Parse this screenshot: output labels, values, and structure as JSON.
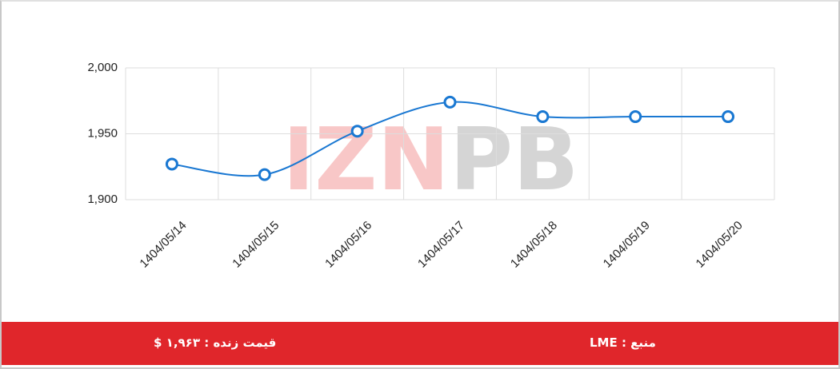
{
  "chart_data": {
    "type": "line",
    "categories": [
      "1404/05/14",
      "1404/05/15",
      "1404/05/16",
      "1404/05/17",
      "1404/05/18",
      "1404/05/19",
      "1404/05/20"
    ],
    "series": [
      {
        "color": "#1a78d2",
        "values": [
          1927,
          1919,
          1952,
          1974,
          1963,
          1963,
          1963
        ]
      }
    ],
    "ylim": [
      1900,
      2000
    ],
    "yticks": [
      {
        "value": 1900,
        "label": "1,900"
      },
      {
        "value": 1950,
        "label": "1,950"
      },
      {
        "value": 2000,
        "label": "2,000"
      }
    ],
    "grid": true,
    "smooth": true
  },
  "watermark": {
    "left": "IZN",
    "right": "PB"
  },
  "footer": {
    "price": "قیمت زنده : ۱,۹۶۳ $",
    "source": "منبع : LME"
  }
}
